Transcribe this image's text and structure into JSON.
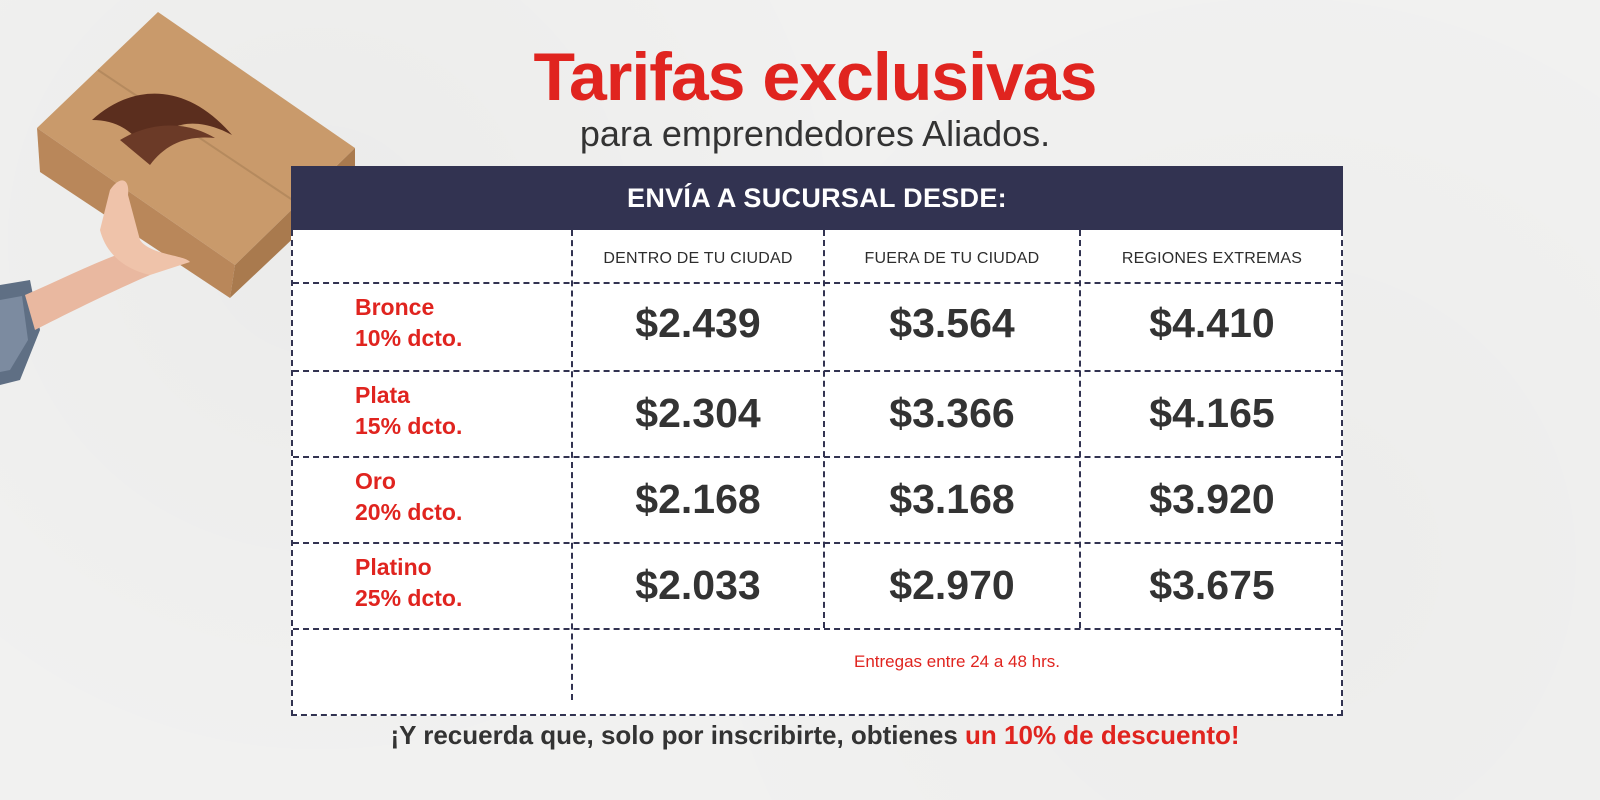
{
  "title": "Tarifas exclusivas",
  "subtitle": "para emprendedores Aliados.",
  "table": {
    "header": "ENVÍA A SUCURSAL DESDE:",
    "columns": [
      "DENTRO DE TU CIUDAD",
      "FUERA DE TU CIUDAD",
      "REGIONES EXTREMAS"
    ],
    "rows": [
      {
        "tier": "Bronce",
        "discount": "10% dcto.",
        "prices": [
          "$2.439",
          "$3.564",
          "$4.410"
        ]
      },
      {
        "tier": "Plata",
        "discount": "15% dcto.",
        "prices": [
          "$2.304",
          "$3.366",
          "$4.165"
        ]
      },
      {
        "tier": "Oro",
        "discount": "20% dcto.",
        "prices": [
          "$2.168",
          "$3.168",
          "$3.920"
        ]
      },
      {
        "tier": "Platino",
        "discount": "25% dcto.",
        "prices": [
          "$2.033",
          "$2.970",
          "$3.675"
        ]
      }
    ],
    "note": "Entregas entre 24 a 48 hrs."
  },
  "footer": {
    "text": "¡Y recuerda que, solo por inscribirte, obtienes ",
    "highlight": "un 10% de descuento!"
  },
  "colors": {
    "accent_red": "#e0241f",
    "header_navy": "#323351",
    "text_dark": "#333333",
    "box_brown": "#c99a6b"
  },
  "icons": [
    "hand-holding-box-icon",
    "brand-logo-icon"
  ]
}
